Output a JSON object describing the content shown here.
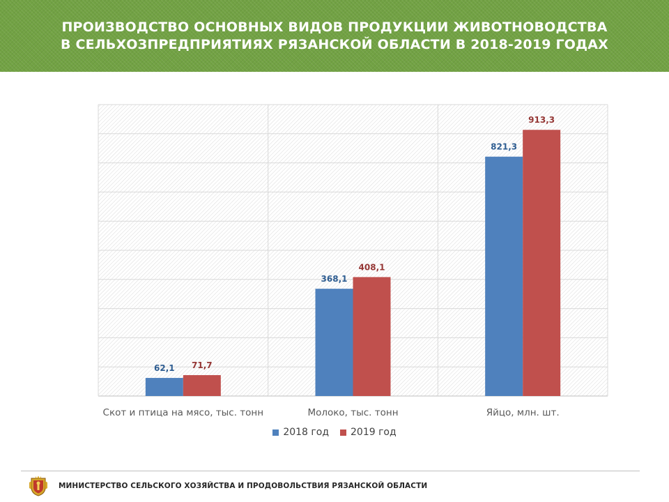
{
  "header": {
    "title_line1": "ПРОИЗВОДСТВО ОСНОВНЫХ ВИДОВ ПРОДУКЦИИ ЖИВОТНОВОДСТВА",
    "title_line2": "В СЕЛЬХОЗПРЕДПРИЯТИЯХ РЯЗАНСКОЙ ОБЛАСТИ В 2018-2019 ГОДАХ"
  },
  "chart_data": {
    "type": "bar",
    "categories": [
      "Скот и птица на мясо, тыс. тонн",
      "Молоко, тыс. тонн",
      "Яйцо, млн. шт."
    ],
    "series": [
      {
        "name": "2018 год",
        "values": [
          62.1,
          368.1,
          821.3
        ],
        "labels": [
          "62,1",
          "368,1",
          "821,3"
        ],
        "color": "#4f81bd",
        "label_color": "#2e5d91"
      },
      {
        "name": "2019 год",
        "values": [
          71.7,
          408.1,
          913.3
        ],
        "labels": [
          "71,7",
          "408,1",
          "913,3"
        ],
        "color": "#c0504d",
        "label_color": "#953735"
      }
    ],
    "ylim": [
      0,
      1000
    ],
    "grid": true,
    "legend_position": "bottom"
  },
  "footer": {
    "text": "МИНИСТЕРСТВО СЕЛЬСКОГО ХОЗЯЙСТВА И ПРОДОВОЛЬСТВИЯ РЯЗАНСКОЙ ОБЛАСТИ",
    "emblem_icon": "ryazan-coat-of-arms-icon"
  }
}
